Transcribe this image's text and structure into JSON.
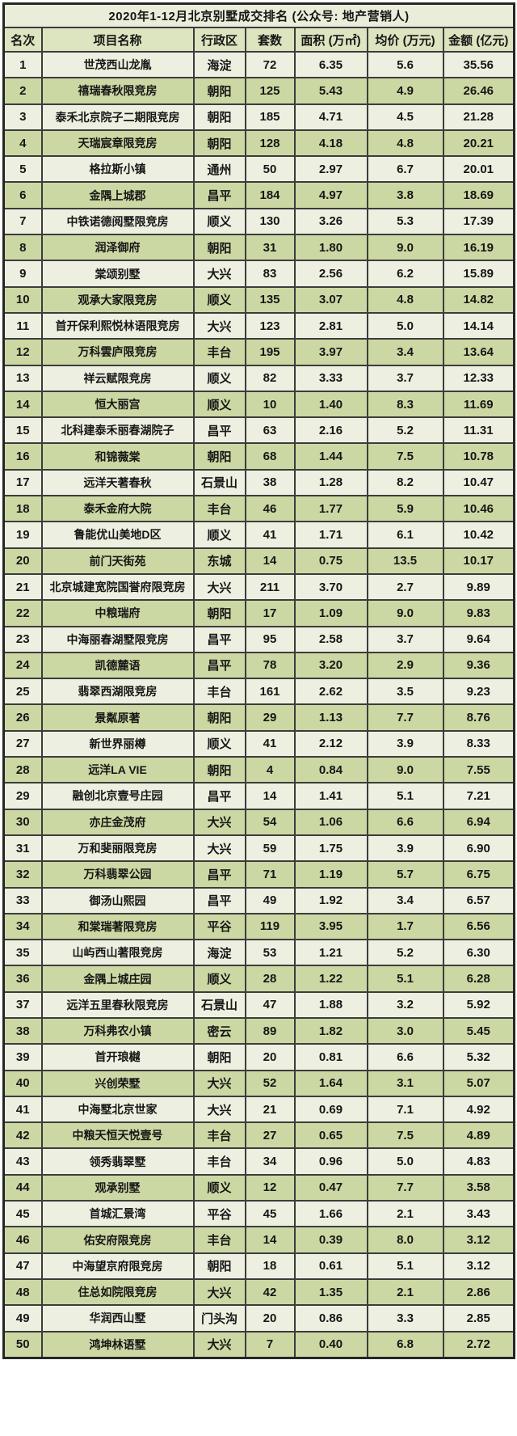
{
  "colors": {
    "row_light": "#edf0e0",
    "row_dark": "#ccd8a3",
    "header_bg": "#dde4c0",
    "title_bg": "#e9edd9",
    "border": "#3c3c3c",
    "text": "#161616"
  },
  "chart_data": {
    "type": "table",
    "title": "2020年1-12月北京别墅成交排名 (公众号: 地产营销人)",
    "columns": [
      "名次",
      "项目名称",
      "行政区",
      "套数",
      "面积 (万㎡)",
      "均价 (万元)",
      "金额 (亿元)"
    ],
    "rows": [
      [
        "1",
        "世茂西山龙胤",
        "海淀",
        "72",
        "6.35",
        "5.6",
        "35.56"
      ],
      [
        "2",
        "禧瑞春秋限竞房",
        "朝阳",
        "125",
        "5.43",
        "4.9",
        "26.46"
      ],
      [
        "3",
        "泰禾北京院子二期限竞房",
        "朝阳",
        "185",
        "4.71",
        "4.5",
        "21.28"
      ],
      [
        "4",
        "天瑞宸章限竞房",
        "朝阳",
        "128",
        "4.18",
        "4.8",
        "20.21"
      ],
      [
        "5",
        "格拉斯小镇",
        "通州",
        "50",
        "2.97",
        "6.7",
        "20.01"
      ],
      [
        "6",
        "金隅上城郡",
        "昌平",
        "184",
        "4.97",
        "3.8",
        "18.69"
      ],
      [
        "7",
        "中铁诺德阅墅限竞房",
        "顺义",
        "130",
        "3.26",
        "5.3",
        "17.39"
      ],
      [
        "8",
        "润泽御府",
        "朝阳",
        "31",
        "1.80",
        "9.0",
        "16.19"
      ],
      [
        "9",
        "棠颂别墅",
        "大兴",
        "83",
        "2.56",
        "6.2",
        "15.89"
      ],
      [
        "10",
        "观承大家限竞房",
        "顺义",
        "135",
        "3.07",
        "4.8",
        "14.82"
      ],
      [
        "11",
        "首开保利熙悦林语限竞房",
        "大兴",
        "123",
        "2.81",
        "5.0",
        "14.14"
      ],
      [
        "12",
        "万科雲庐限竞房",
        "丰台",
        "195",
        "3.97",
        "3.4",
        "13.64"
      ],
      [
        "13",
        "祥云赋限竞房",
        "顺义",
        "82",
        "3.33",
        "3.7",
        "12.33"
      ],
      [
        "14",
        "恒大丽宫",
        "顺义",
        "10",
        "1.40",
        "8.3",
        "11.69"
      ],
      [
        "15",
        "北科建泰禾丽春湖院子",
        "昌平",
        "63",
        "2.16",
        "5.2",
        "11.31"
      ],
      [
        "16",
        "和锦薇棠",
        "朝阳",
        "68",
        "1.44",
        "7.5",
        "10.78"
      ],
      [
        "17",
        "远洋天著春秋",
        "石景山",
        "38",
        "1.28",
        "8.2",
        "10.47"
      ],
      [
        "18",
        "泰禾金府大院",
        "丰台",
        "46",
        "1.77",
        "5.9",
        "10.46"
      ],
      [
        "19",
        "鲁能优山美地D区",
        "顺义",
        "41",
        "1.71",
        "6.1",
        "10.42"
      ],
      [
        "20",
        "前门天街苑",
        "东城",
        "14",
        "0.75",
        "13.5",
        "10.17"
      ],
      [
        "21",
        "北京城建宽院国誉府限竞房",
        "大兴",
        "211",
        "3.70",
        "2.7",
        "9.89"
      ],
      [
        "22",
        "中粮瑞府",
        "朝阳",
        "17",
        "1.09",
        "9.0",
        "9.83"
      ],
      [
        "23",
        "中海丽春湖墅限竞房",
        "昌平",
        "95",
        "2.58",
        "3.7",
        "9.64"
      ],
      [
        "24",
        "凯德麓语",
        "昌平",
        "78",
        "3.20",
        "2.9",
        "9.36"
      ],
      [
        "25",
        "翡翠西湖限竞房",
        "丰台",
        "161",
        "2.62",
        "3.5",
        "9.23"
      ],
      [
        "26",
        "景粼原著",
        "朝阳",
        "29",
        "1.13",
        "7.7",
        "8.76"
      ],
      [
        "27",
        "新世界丽樽",
        "顺义",
        "41",
        "2.12",
        "3.9",
        "8.33"
      ],
      [
        "28",
        "远洋LA VIE",
        "朝阳",
        "4",
        "0.84",
        "9.0",
        "7.55"
      ],
      [
        "29",
        "融创北京壹号庄园",
        "昌平",
        "14",
        "1.41",
        "5.1",
        "7.21"
      ],
      [
        "30",
        "亦庄金茂府",
        "大兴",
        "54",
        "1.06",
        "6.6",
        "6.94"
      ],
      [
        "31",
        "万和斐丽限竞房",
        "大兴",
        "59",
        "1.75",
        "3.9",
        "6.90"
      ],
      [
        "32",
        "万科翡翠公园",
        "昌平",
        "71",
        "1.19",
        "5.7",
        "6.75"
      ],
      [
        "33",
        "御汤山熙园",
        "昌平",
        "49",
        "1.92",
        "3.4",
        "6.57"
      ],
      [
        "34",
        "和棠瑞著限竞房",
        "平谷",
        "119",
        "3.95",
        "1.7",
        "6.56"
      ],
      [
        "35",
        "山屿西山著限竞房",
        "海淀",
        "53",
        "1.21",
        "5.2",
        "6.30"
      ],
      [
        "36",
        "金隅上城庄园",
        "顺义",
        "28",
        "1.22",
        "5.1",
        "6.28"
      ],
      [
        "37",
        "远洋五里春秋限竞房",
        "石景山",
        "47",
        "1.88",
        "3.2",
        "5.92"
      ],
      [
        "38",
        "万科弗农小镇",
        "密云",
        "89",
        "1.82",
        "3.0",
        "5.45"
      ],
      [
        "39",
        "首开琅樾",
        "朝阳",
        "20",
        "0.81",
        "6.6",
        "5.32"
      ],
      [
        "40",
        "兴创荣墅",
        "大兴",
        "52",
        "1.64",
        "3.1",
        "5.07"
      ],
      [
        "41",
        "中海墅北京世家",
        "大兴",
        "21",
        "0.69",
        "7.1",
        "4.92"
      ],
      [
        "42",
        "中粮天恒天悦壹号",
        "丰台",
        "27",
        "0.65",
        "7.5",
        "4.89"
      ],
      [
        "43",
        "领秀翡翠墅",
        "丰台",
        "34",
        "0.96",
        "5.0",
        "4.83"
      ],
      [
        "44",
        "观承别墅",
        "顺义",
        "12",
        "0.47",
        "7.7",
        "3.58"
      ],
      [
        "45",
        "首城汇景湾",
        "平谷",
        "45",
        "1.66",
        "2.1",
        "3.43"
      ],
      [
        "46",
        "佑安府限竞房",
        "丰台",
        "14",
        "0.39",
        "8.0",
        "3.12"
      ],
      [
        "47",
        "中海望京府限竞房",
        "朝阳",
        "18",
        "0.61",
        "5.1",
        "3.12"
      ],
      [
        "48",
        "住总如院限竞房",
        "大兴",
        "42",
        "1.35",
        "2.1",
        "2.86"
      ],
      [
        "49",
        "华润西山墅",
        "门头沟",
        "20",
        "0.86",
        "3.3",
        "2.85"
      ],
      [
        "50",
        "鸿坤林语墅",
        "大兴",
        "7",
        "0.40",
        "6.8",
        "2.72"
      ]
    ]
  }
}
